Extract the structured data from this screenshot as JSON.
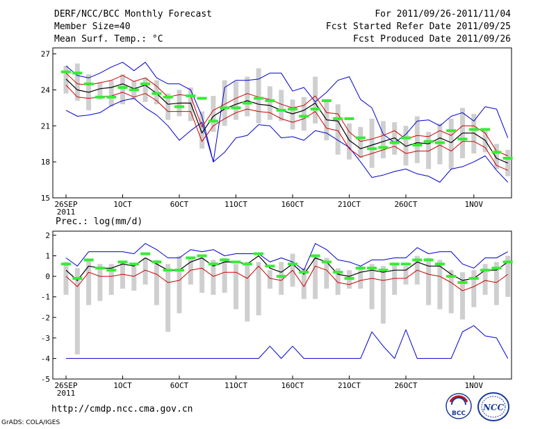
{
  "header": {
    "title": "DERF/NCC/BCC Monthly Forecast",
    "member_size": "Member Size=40",
    "variable": "Mean Surf. Temp.: °C",
    "period": "For 2011/09/26-2011/11/04",
    "start_date": "Fcst Started Refer Date 2011/09/25",
    "produced_date": "Fcst Produced Date 2011/09/26"
  },
  "footer": {
    "url": "http://cmdp.ncc.cma.gov.cn",
    "credit": "GrADS: COLA/IGES",
    "logo1_text": "BCC",
    "logo2_text": "NCC"
  },
  "colors": {
    "envelope": "#0000cc",
    "band": "#cc0000",
    "mean": "#000000",
    "bar": "#cfcfcf",
    "marker": "#33ee33"
  },
  "chart_data": [
    {
      "type": "line",
      "title": "Mean Surf. Temp.: °C",
      "x_ticks": [
        "26SEP",
        "1OCT",
        "6OCT",
        "11OCT",
        "16OCT",
        "21OCT",
        "26OCT",
        "1NOV"
      ],
      "x_tick_days": [
        0,
        5,
        10,
        15,
        20,
        25,
        30,
        36
      ],
      "x_sublabel": "2011",
      "y_ticks": [
        "15",
        "18",
        "21",
        "24",
        "27"
      ],
      "ylim": [
        15,
        27.5
      ],
      "days": 40,
      "series": [
        {
          "name": "ensemble_max",
          "values": [
            26.0,
            25.2,
            25.0,
            25.4,
            25.9,
            26.3,
            25.6,
            26.3,
            25.0,
            24.5,
            24.5,
            24.0,
            21.8,
            18.0,
            24.2,
            24.8,
            24.8,
            24.9,
            25.4,
            25.4,
            23.9,
            24.2,
            23.0,
            23.8,
            24.8,
            25.1,
            23.2,
            22.5,
            20.3,
            19.6,
            20.3,
            21.4,
            21.5,
            21.0,
            21.8,
            22.1,
            21.4,
            22.6,
            22.4,
            20.0
          ]
        },
        {
          "name": "p75",
          "values": [
            25.4,
            24.5,
            24.4,
            24.6,
            24.8,
            25.2,
            24.7,
            25.0,
            24.3,
            23.4,
            23.6,
            23.5,
            20.9,
            22.3,
            22.8,
            23.3,
            23.7,
            23.4,
            23.2,
            22.8,
            22.5,
            22.7,
            23.5,
            22.1,
            22.0,
            20.5,
            19.7,
            19.9,
            20.2,
            20.6,
            19.9,
            20.2,
            20.1,
            20.6,
            20.2,
            21.0,
            21.0,
            20.4,
            18.9,
            18.5
          ]
        },
        {
          "name": "mean",
          "values": [
            24.9,
            24.0,
            23.8,
            24.1,
            24.2,
            24.5,
            24.1,
            24.4,
            23.7,
            22.8,
            22.9,
            22.9,
            20.4,
            21.8,
            22.4,
            22.8,
            23.1,
            22.8,
            22.7,
            22.3,
            22.0,
            22.3,
            22.9,
            21.5,
            21.4,
            19.8,
            19.1,
            19.4,
            19.7,
            20.0,
            19.3,
            19.6,
            19.5,
            20.0,
            19.6,
            20.4,
            20.4,
            19.8,
            18.3,
            17.9
          ]
        },
        {
          "name": "p25",
          "values": [
            24.4,
            23.4,
            23.3,
            23.4,
            23.5,
            23.8,
            23.4,
            23.7,
            23.1,
            22.2,
            22.2,
            22.2,
            19.7,
            21.0,
            21.6,
            22.1,
            22.4,
            22.2,
            22.1,
            21.6,
            21.3,
            21.6,
            22.2,
            20.8,
            20.6,
            19.1,
            18.4,
            18.7,
            19.0,
            19.3,
            18.7,
            18.9,
            18.9,
            19.4,
            18.9,
            19.7,
            19.7,
            19.2,
            17.7,
            17.3
          ]
        },
        {
          "name": "ensemble_min",
          "values": [
            22.3,
            21.8,
            21.9,
            22.1,
            22.7,
            23.1,
            23.3,
            22.5,
            21.9,
            21.0,
            19.8,
            20.6,
            21.3,
            18.0,
            18.8,
            20.0,
            20.2,
            21.1,
            21.0,
            20.0,
            20.1,
            19.8,
            20.6,
            20.4,
            19.8,
            19.2,
            18.0,
            16.7,
            16.9,
            17.2,
            17.4,
            17.0,
            16.8,
            16.3,
            17.4,
            17.6,
            18.0,
            18.5,
            17.3,
            16.3
          ]
        },
        {
          "name": "bar_low",
          "values": [
            23.7,
            23.1,
            22.3,
            23.2,
            22.6,
            22.8,
            23.2,
            23.0,
            22.8,
            21.5,
            21.8,
            21.4,
            19.1,
            20.5,
            21.0,
            21.5,
            21.8,
            21.2,
            21.5,
            21.4,
            20.7,
            20.6,
            21.2,
            19.8,
            18.6,
            18.2,
            18.3,
            17.5,
            18.3,
            18.6,
            17.7,
            17.9,
            17.4,
            17.8,
            17.4,
            18.3,
            18.7,
            18.8,
            17.4,
            16.8
          ]
        },
        {
          "name": "bar_high",
          "values": [
            26.0,
            26.2,
            25.3,
            24.6,
            24.8,
            25.3,
            24.7,
            25.0,
            24.8,
            23.7,
            24.0,
            24.2,
            22.2,
            23.5,
            24.8,
            24.7,
            25.1,
            25.8,
            24.3,
            24.0,
            23.2,
            23.4,
            25.1,
            23.2,
            22.8,
            21.2,
            20.9,
            21.6,
            21.4,
            21.3,
            21.0,
            21.8,
            20.5,
            21.2,
            21.6,
            22.5,
            22.0,
            20.8,
            19.5,
            19.0
          ]
        },
        {
          "name": "observed_markers",
          "values": [
            25.5,
            25.4,
            24.5,
            23.4,
            23.4,
            24.2,
            24.0,
            24.5,
            23.7,
            23.4,
            22.6,
            23.5,
            23.3,
            21.4,
            22.5,
            22.5,
            22.9,
            23.3,
            23.1,
            22.3,
            22.4,
            21.8,
            22.4,
            23.1,
            21.6,
            21.6,
            20.0,
            19.1,
            19.2,
            19.6,
            20.0,
            19.4,
            19.7,
            19.6,
            20.6,
            19.9,
            20.7,
            20.7,
            18.8,
            18.3
          ]
        }
      ]
    },
    {
      "type": "line",
      "title": "Prec.: log(mm/d)",
      "x_ticks": [
        "26SEP",
        "1OCT",
        "6OCT",
        "11OCT",
        "16OCT",
        "21OCT",
        "26OCT",
        "1NOV"
      ],
      "x_tick_days": [
        0,
        5,
        10,
        15,
        20,
        25,
        30,
        36
      ],
      "x_sublabel": "2011",
      "y_ticks": [
        "-5",
        "-4",
        "-3",
        "-2",
        "-1",
        "0",
        "1",
        "2"
      ],
      "ylim": [
        -5,
        2.2
      ],
      "days": 40,
      "series": [
        {
          "name": "ensemble_max",
          "values": [
            0.9,
            0.5,
            1.2,
            1.2,
            1.2,
            1.2,
            1.1,
            1.6,
            1.3,
            0.9,
            0.9,
            1.3,
            1.2,
            1.3,
            1.0,
            1.1,
            1.1,
            1.1,
            0.7,
            0.9,
            0.7,
            0.3,
            1.6,
            1.3,
            0.8,
            0.7,
            0.5,
            0.8,
            0.8,
            0.9,
            0.9,
            1.4,
            1.1,
            1.2,
            1.2,
            0.6,
            0.4,
            0.9,
            0.9,
            1.2
          ]
        },
        {
          "name": "mean",
          "values": [
            0.3,
            -0.2,
            0.5,
            0.4,
            0.4,
            0.6,
            0.5,
            0.9,
            0.6,
            0.3,
            0.3,
            0.7,
            0.9,
            0.5,
            0.7,
            0.7,
            0.6,
            1.0,
            0.4,
            0.2,
            0.6,
            0.1,
            0.9,
            0.7,
            0.1,
            0.0,
            0.2,
            0.3,
            0.2,
            0.3,
            0.3,
            0.7,
            0.5,
            0.5,
            0.1,
            -0.2,
            -0.1,
            0.3,
            0.3,
            0.7
          ]
        },
        {
          "name": "band_low",
          "values": [
            0.0,
            -0.5,
            0.2,
            0.0,
            0.0,
            0.1,
            0.0,
            0.3,
            0.1,
            -0.3,
            -0.2,
            0.3,
            0.4,
            0.0,
            0.2,
            0.2,
            -0.1,
            0.5,
            -0.1,
            -0.2,
            0.3,
            -0.5,
            0.5,
            0.3,
            -0.3,
            -0.4,
            -0.2,
            -0.1,
            -0.2,
            -0.1,
            -0.1,
            0.3,
            0.1,
            0.0,
            -0.3,
            -0.7,
            -0.5,
            -0.2,
            -0.3,
            0.1
          ]
        },
        {
          "name": "ensemble_min",
          "values": [
            -4.0,
            -4.0,
            -4.0,
            -4.0,
            -4.0,
            -4.0,
            -4.0,
            -4.0,
            -4.0,
            -4.0,
            -4.0,
            -4.0,
            -4.0,
            -4.0,
            -4.0,
            -4.0,
            -4.0,
            -4.0,
            -3.4,
            -4.0,
            -3.4,
            -4.0,
            -4.0,
            -4.0,
            -4.0,
            -4.0,
            -4.0,
            -2.7,
            -3.4,
            -4.0,
            -2.6,
            -4.0,
            -4.0,
            -4.0,
            -4.0,
            -2.7,
            -2.4,
            -2.9,
            -3.0,
            -4.0
          ]
        },
        {
          "name": "bar_low",
          "values": [
            -0.9,
            -3.8,
            -1.4,
            -1.2,
            -0.9,
            -0.6,
            -0.7,
            -0.4,
            -1.4,
            -2.7,
            -1.8,
            -0.4,
            -0.8,
            -0.9,
            -0.8,
            -1.6,
            -2.2,
            -1.9,
            -0.6,
            -0.9,
            -0.5,
            -1.1,
            -1.1,
            -0.6,
            -0.9,
            -0.6,
            -0.6,
            -1.6,
            -2.3,
            -0.9,
            -0.4,
            -0.4,
            -1.4,
            -1.6,
            -1.8,
            -2.1,
            -1.5,
            -0.9,
            -1.4,
            -1.0
          ]
        },
        {
          "name": "bar_high",
          "values": [
            0.7,
            0.4,
            0.8,
            0.6,
            0.6,
            0.7,
            0.5,
            0.9,
            0.8,
            0.6,
            1.0,
            0.9,
            0.9,
            0.8,
            0.9,
            0.6,
            0.7,
            0.7,
            0.3,
            0.7,
            1.1,
            0.4,
            1.0,
            0.9,
            0.4,
            0.3,
            0.5,
            0.6,
            0.5,
            0.6,
            0.5,
            1.0,
            0.9,
            0.8,
            0.3,
            0.2,
            0.3,
            0.6,
            0.7,
            1.0
          ]
        },
        {
          "name": "observed_markers",
          "values": [
            0.6,
            -0.1,
            0.8,
            0.4,
            0.3,
            0.7,
            0.6,
            1.1,
            0.7,
            0.3,
            0.3,
            0.9,
            1.0,
            0.6,
            0.8,
            0.7,
            0.6,
            1.1,
            0.5,
            0.0,
            0.6,
            0.2,
            1.0,
            0.7,
            0.2,
            -0.1,
            0.4,
            0.4,
            0.3,
            0.6,
            0.6,
            0.8,
            0.8,
            0.6,
            0.0,
            -0.3,
            -0.1,
            0.3,
            0.4,
            0.7
          ]
        }
      ]
    }
  ]
}
